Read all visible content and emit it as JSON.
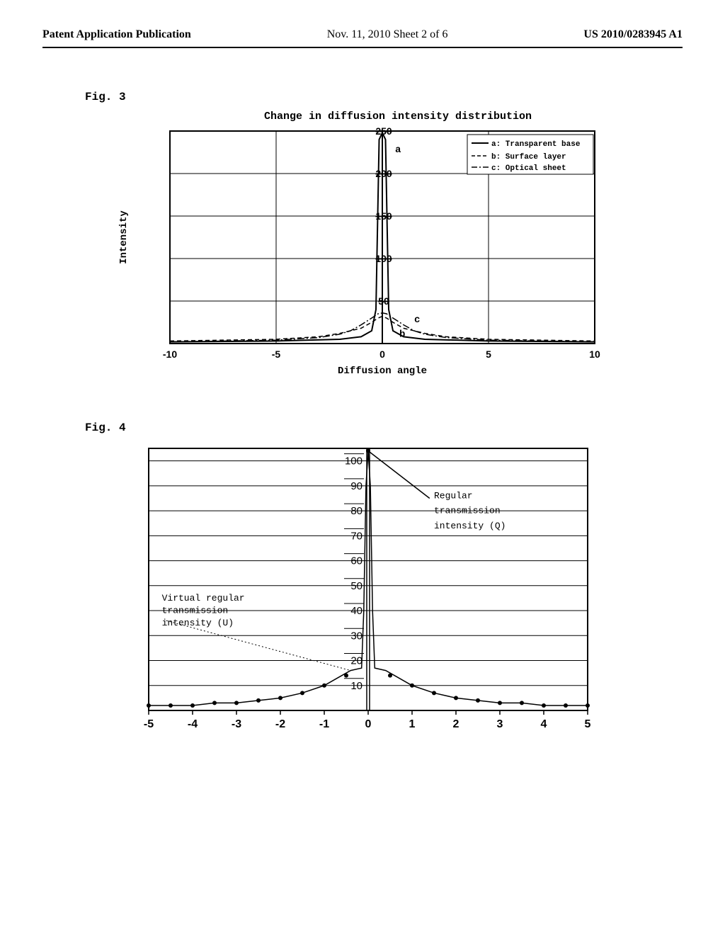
{
  "header": {
    "left": "Patent Application Publication",
    "center": "Nov. 11, 2010  Sheet 2 of 6",
    "right": "US 2010/0283945 A1"
  },
  "fig3": {
    "label": "Fig. 3",
    "title": "Change in diffusion intensity distribution",
    "ylabel": "Intensity",
    "xlabel": "Diffusion angle",
    "xlim": [
      -10,
      10
    ],
    "ylim": [
      0,
      250
    ],
    "xticks": [
      -10,
      -5,
      0,
      5,
      10
    ],
    "yticks": [
      50,
      100,
      150,
      200,
      250
    ],
    "legend": {
      "a": "Transparent base",
      "b": "Surface layer",
      "c": "Optical sheet",
      "a_label": "a",
      "b_label": "b",
      "c_label": "c"
    },
    "annotations": {
      "a": "a",
      "b": "b",
      "c": "c"
    },
    "series_a": {
      "color": "#000000",
      "style": "solid",
      "width": 2,
      "points": [
        [
          -10,
          2
        ],
        [
          -5,
          3
        ],
        [
          -2,
          5
        ],
        [
          -1,
          8
        ],
        [
          -0.5,
          15
        ],
        [
          -0.3,
          40
        ],
        [
          -0.15,
          240
        ],
        [
          0,
          248
        ],
        [
          0.15,
          240
        ],
        [
          0.3,
          40
        ],
        [
          0.5,
          15
        ],
        [
          1,
          8
        ],
        [
          2,
          5
        ],
        [
          5,
          3
        ],
        [
          10,
          2
        ]
      ]
    },
    "series_b": {
      "color": "#000000",
      "style": "dashed",
      "width": 1.5,
      "points": [
        [
          -10,
          3
        ],
        [
          -5,
          5
        ],
        [
          -3,
          8
        ],
        [
          -2,
          12
        ],
        [
          -1,
          18
        ],
        [
          -0.5,
          25
        ],
        [
          -0.2,
          30
        ],
        [
          0,
          32
        ],
        [
          0.2,
          30
        ],
        [
          0.5,
          25
        ],
        [
          1,
          18
        ],
        [
          2,
          12
        ],
        [
          3,
          8
        ],
        [
          5,
          5
        ],
        [
          10,
          3
        ]
      ]
    },
    "series_c": {
      "color": "#000000",
      "style": "dash-dot",
      "width": 1.5,
      "points": [
        [
          -10,
          2
        ],
        [
          -5,
          4
        ],
        [
          -3,
          7
        ],
        [
          -2,
          11
        ],
        [
          -1.5,
          15
        ],
        [
          -1,
          22
        ],
        [
          -0.5,
          30
        ],
        [
          -0.2,
          35
        ],
        [
          0,
          36
        ],
        [
          0.2,
          35
        ],
        [
          0.5,
          30
        ],
        [
          1,
          22
        ],
        [
          1.5,
          15
        ],
        [
          2,
          11
        ],
        [
          3,
          7
        ],
        [
          5,
          4
        ],
        [
          10,
          2
        ]
      ]
    }
  },
  "fig4": {
    "label": "Fig. 4",
    "xlim": [
      -5,
      5
    ],
    "ylim": [
      0,
      105
    ],
    "xticks": [
      -5,
      -4,
      -3,
      -2,
      -1,
      0,
      1,
      2,
      3,
      4,
      5
    ],
    "yticks": [
      10,
      20,
      30,
      40,
      50,
      60,
      70,
      80,
      90,
      100
    ],
    "label_q": "Regular transmission intensity (Q)",
    "label_u": "Virtual regular transmission intensity (U)",
    "curve": {
      "color": "#000000",
      "width": 1.5,
      "points": [
        [
          -5,
          2
        ],
        [
          -4.5,
          2
        ],
        [
          -4,
          2
        ],
        [
          -3.5,
          3
        ],
        [
          -3,
          3
        ],
        [
          -2.5,
          4
        ],
        [
          -2,
          5
        ],
        [
          -1.5,
          7
        ],
        [
          -1,
          10
        ],
        [
          -0.7,
          13
        ],
        [
          -0.4,
          16
        ],
        [
          -0.15,
          17
        ],
        [
          -0.1,
          40
        ],
        [
          -0.05,
          90
        ],
        [
          0,
          104
        ],
        [
          0.05,
          90
        ],
        [
          0.1,
          40
        ],
        [
          0.15,
          17
        ],
        [
          0.4,
          16
        ],
        [
          0.7,
          13
        ],
        [
          1,
          10
        ],
        [
          1.5,
          7
        ],
        [
          2,
          5
        ],
        [
          2.5,
          4
        ],
        [
          3,
          3
        ],
        [
          3.5,
          3
        ],
        [
          4,
          2
        ],
        [
          4.5,
          2
        ],
        [
          5,
          2
        ]
      ],
      "markers": [
        [
          -5,
          2
        ],
        [
          -4.5,
          2
        ],
        [
          -4,
          2
        ],
        [
          -3.5,
          3
        ],
        [
          -3,
          3
        ],
        [
          -2.5,
          4
        ],
        [
          -2,
          5
        ],
        [
          -1.5,
          7
        ],
        [
          -1,
          10
        ],
        [
          -0.5,
          14
        ],
        [
          0,
          104
        ],
        [
          0.5,
          14
        ],
        [
          1,
          10
        ],
        [
          1.5,
          7
        ],
        [
          2,
          5
        ],
        [
          2.5,
          4
        ],
        [
          3,
          3
        ],
        [
          3.5,
          3
        ],
        [
          4,
          2
        ],
        [
          4.5,
          2
        ],
        [
          5,
          2
        ]
      ]
    },
    "q_line": {
      "from": [
        0,
        104
      ],
      "to": [
        1.4,
        85
      ]
    },
    "u_line": {
      "from": [
        -4.6,
        36
      ],
      "to": [
        -0.4,
        16
      ]
    }
  },
  "styling": {
    "font_mono": "Courier New",
    "font_serif": "Times New Roman",
    "axis_color": "#000000",
    "grid_color": "#000000",
    "background": "#ffffff"
  }
}
